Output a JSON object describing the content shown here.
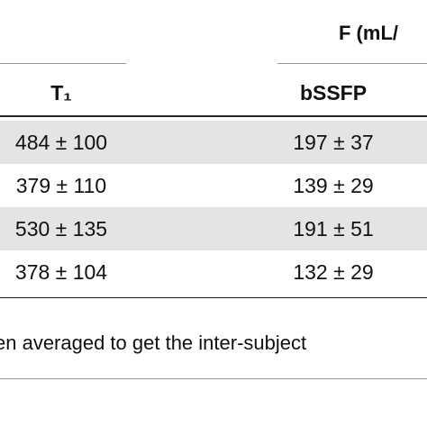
{
  "table": {
    "group_header": "F (mL/",
    "columns": [
      "T₁",
      "bSSFP"
    ],
    "rows": [
      [
        "484 ± 100",
        "197 ± 37"
      ],
      [
        "379 ± 110",
        "139 ± 29"
      ],
      [
        "530 ± 135",
        "191 ± 51"
      ],
      [
        "378 ± 104",
        "132 ± 29"
      ]
    ]
  },
  "footnote": "en averaged to get the inter-subject"
}
